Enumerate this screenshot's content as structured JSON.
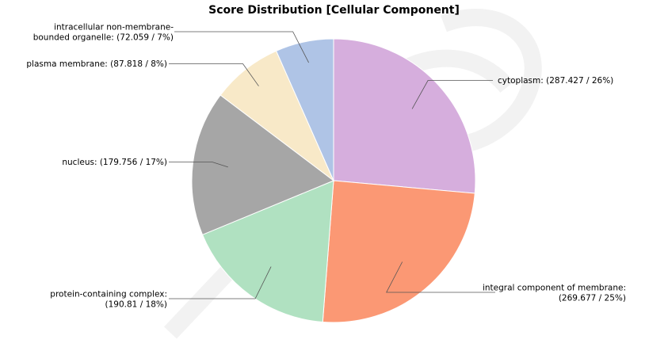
{
  "chart_data": {
    "type": "pie",
    "title": "Score Distribution [Cellular Component]",
    "start_angle_deg": 0,
    "direction": "clockwise",
    "slices": [
      {
        "label_lines": [
          "cytoplasm: (287.427 / 26%)"
        ],
        "value": 287.427,
        "percent": 26,
        "color": "#d6aedd"
      },
      {
        "label_lines": [
          "integral component of membrane:",
          "(269.677 / 25%)"
        ],
        "value": 269.677,
        "percent": 25,
        "color": "#fb9874"
      },
      {
        "label_lines": [
          "protein-containing complex:",
          "(190.81 / 18%)"
        ],
        "value": 190.81,
        "percent": 18,
        "color": "#b0e1c1"
      },
      {
        "label_lines": [
          "nucleus: (179.756 / 17%)"
        ],
        "value": 179.756,
        "percent": 17,
        "color": "#a6a6a6"
      },
      {
        "label_lines": [
          "plasma membrane: (87.818 / 8%)"
        ],
        "value": 87.818,
        "percent": 8,
        "color": "#f8e9c8"
      },
      {
        "label_lines": [
          "intracellular non-membrane-",
          "bounded organelle: (72.059 / 7%)"
        ],
        "value": 72.059,
        "percent": 7,
        "color": "#afc4e6"
      }
    ]
  }
}
